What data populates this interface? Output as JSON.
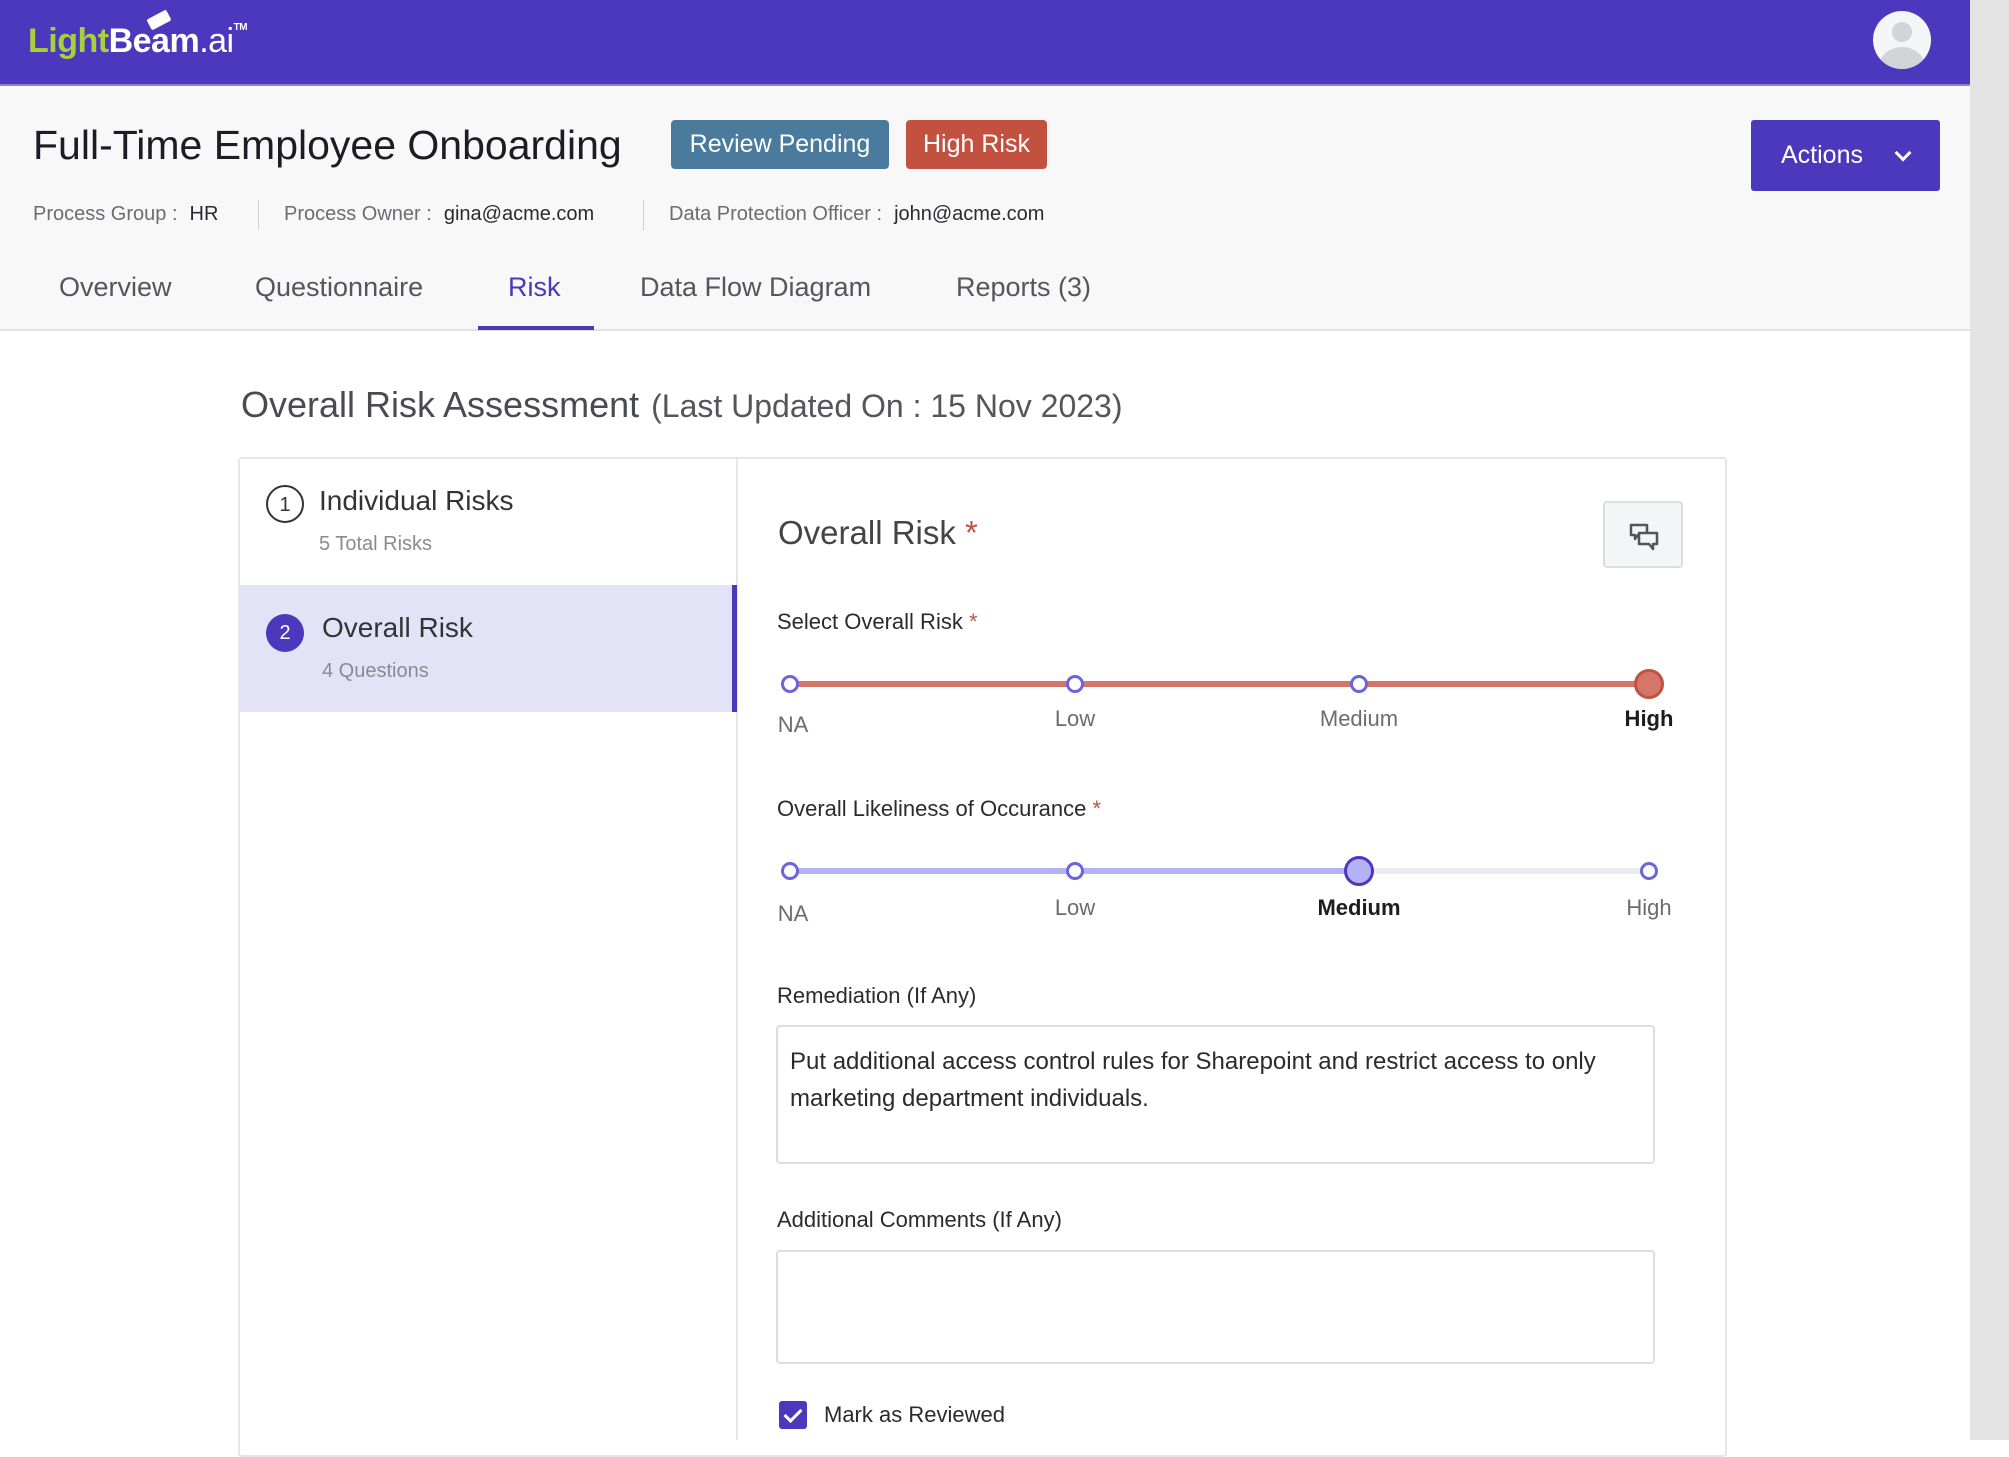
{
  "brand": {
    "logo_light": "Light",
    "logo_b": "B",
    "logo_eam": "eam",
    "logo_ai": ".ai",
    "logo_tm": "TM",
    "color": "#4b38bd"
  },
  "header": {
    "title": "Full-Time Employee Onboarding",
    "badges": [
      {
        "label": "Review Pending",
        "color": "#4a7b9d"
      },
      {
        "label": "High Risk",
        "color": "#c25140"
      }
    ],
    "actions_label": "Actions",
    "meta": [
      {
        "label": "Process Group :",
        "value": "HR"
      },
      {
        "label": "Process Owner :",
        "value": "gina@acme.com"
      },
      {
        "label": "Data Protection Officer :",
        "value": "john@acme.com"
      }
    ]
  },
  "tabs": [
    {
      "label": "Overview"
    },
    {
      "label": "Questionnaire"
    },
    {
      "label": "Risk",
      "active": true
    },
    {
      "label": "Data Flow Diagram"
    },
    {
      "label": "Reports (3)"
    }
  ],
  "section": {
    "title": "Overall Risk Assessment",
    "updated": "(Last Updated On : 15 Nov 2023)"
  },
  "steps": [
    {
      "num": "1",
      "title": "Individual Risks",
      "sub": "5 Total Risks"
    },
    {
      "num": "2",
      "title": "Overall Risk",
      "sub": "4 Questions",
      "active": true
    }
  ],
  "panel": {
    "title": "Overall Risk",
    "required_mark": "*",
    "comment_icon": "chat-bubbles-icon",
    "overall_risk": {
      "label": "Select Overall Risk",
      "options": [
        "NA",
        "Low",
        "Medium",
        "High"
      ],
      "selected": "High",
      "color": "#d4766a"
    },
    "likeliness": {
      "label": "Overall Likeliness of Occurance",
      "options": [
        "NA",
        "Low",
        "Medium",
        "High"
      ],
      "selected": "Medium",
      "color": "#b4b2f4"
    },
    "remediation": {
      "label": "Remediation (If Any)",
      "value": "Put additional access control rules for Sharepoint and restrict access to only marketing department individuals."
    },
    "comments": {
      "label": "Additional Comments (If Any)",
      "value": ""
    },
    "mark_reviewed": {
      "label": "Mark as Reviewed",
      "checked": true
    }
  }
}
